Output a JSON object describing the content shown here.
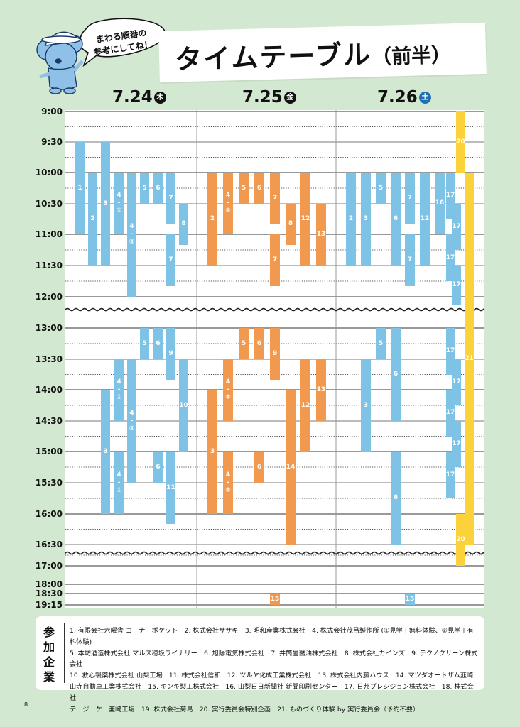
{
  "header": {
    "title": "タイムテーブル",
    "title_suffix": "（前半）",
    "speech_bubble": "まわる順番の\n参考にしてね！"
  },
  "days": [
    {
      "date": "7.24",
      "weekday": "木",
      "color": "#111111"
    },
    {
      "date": "7.25",
      "weekday": "金",
      "color": "#111111"
    },
    {
      "date": "7.26",
      "weekday": "土",
      "color": "#1e6fb4"
    }
  ],
  "colors": {
    "day1": "#7ec3e6",
    "day2": "#f19a4f",
    "day3": "#7ec3e6",
    "special": "#fcd23a",
    "background": "#d3e8d0"
  },
  "time_labels": [
    "9:00",
    "9:30",
    "10:00",
    "10:30",
    "11:00",
    "11:30",
    "12:00",
    "13:00",
    "13:30",
    "14:00",
    "14:30",
    "15:00",
    "15:30",
    "16:00",
    "16:30",
    "17:00",
    "18:00",
    "18:30",
    "19:15"
  ],
  "sessions": [
    {
      "day": 0,
      "slot": 0,
      "start": "9:30",
      "end": "11:00",
      "label": "1"
    },
    {
      "day": 0,
      "slot": 1,
      "start": "10:00",
      "end": "11:30",
      "label": "2"
    },
    {
      "day": 0,
      "slot": 2,
      "start": "9:30",
      "end": "11:30",
      "label": "3"
    },
    {
      "day": 0,
      "slot": 3,
      "start": "10:00",
      "end": "11:00",
      "label": "4\n-\n①"
    },
    {
      "day": 0,
      "slot": 4,
      "start": "10:00",
      "end": "12:00",
      "label": "4\n-\n②"
    },
    {
      "day": 0,
      "slot": 5,
      "start": "10:00",
      "end": "10:30",
      "label": "5"
    },
    {
      "day": 0,
      "slot": 6,
      "start": "10:00",
      "end": "10:30",
      "label": "6"
    },
    {
      "day": 0,
      "slot": 7,
      "start": "10:00",
      "end": "10:50",
      "label": "7"
    },
    {
      "day": 0,
      "slot": 7,
      "start": "11:00",
      "end": "11:50",
      "label": "7"
    },
    {
      "day": 0,
      "slot": 8,
      "start": "10:30",
      "end": "11:10",
      "label": "8"
    },
    {
      "day": 0,
      "slot": 2,
      "start": "14:00",
      "end": "16:00",
      "label": "3"
    },
    {
      "day": 0,
      "slot": 3,
      "start": "13:30",
      "end": "14:30",
      "label": "4\n-\n①"
    },
    {
      "day": 0,
      "slot": 3,
      "start": "15:00",
      "end": "16:00",
      "label": "4\n-\n①"
    },
    {
      "day": 0,
      "slot": 4,
      "start": "13:30",
      "end": "15:30",
      "label": "4\n-\n②"
    },
    {
      "day": 0,
      "slot": 5,
      "start": "13:00",
      "end": "13:30",
      "label": "5"
    },
    {
      "day": 0,
      "slot": 6,
      "start": "13:00",
      "end": "13:30",
      "label": "6"
    },
    {
      "day": 0,
      "slot": 6,
      "start": "15:00",
      "end": "15:30",
      "label": "6"
    },
    {
      "day": 0,
      "slot": 7,
      "start": "13:00",
      "end": "13:50",
      "label": "9"
    },
    {
      "day": 0,
      "slot": 7,
      "start": "15:00",
      "end": "16:10",
      "label": "11"
    },
    {
      "day": 0,
      "slot": 8,
      "start": "13:30",
      "end": "15:00",
      "label": "10"
    },
    {
      "day": 1,
      "slot": 0,
      "start": "10:00",
      "end": "11:30",
      "label": "2"
    },
    {
      "day": 1,
      "slot": 1,
      "start": "10:00",
      "end": "11:00",
      "label": "4\n-\n①"
    },
    {
      "day": 1,
      "slot": 2,
      "start": "10:00",
      "end": "10:30",
      "label": "5"
    },
    {
      "day": 1,
      "slot": 3,
      "start": "10:00",
      "end": "10:30",
      "label": "6"
    },
    {
      "day": 1,
      "slot": 4,
      "start": "10:00",
      "end": "10:50",
      "label": "7"
    },
    {
      "day": 1,
      "slot": 4,
      "start": "11:00",
      "end": "11:50",
      "label": "7"
    },
    {
      "day": 1,
      "slot": 5,
      "start": "10:30",
      "end": "11:10",
      "label": "8"
    },
    {
      "day": 1,
      "slot": 6,
      "start": "10:00",
      "end": "11:30",
      "label": "12"
    },
    {
      "day": 1,
      "slot": 7,
      "start": "10:30",
      "end": "11:30",
      "label": "13"
    },
    {
      "day": 1,
      "slot": 0,
      "start": "14:00",
      "end": "16:00",
      "label": "3"
    },
    {
      "day": 1,
      "slot": 1,
      "start": "13:30",
      "end": "14:30",
      "label": "4\n-\n①"
    },
    {
      "day": 1,
      "slot": 1,
      "start": "15:00",
      "end": "16:00",
      "label": "4\n-\n①"
    },
    {
      "day": 1,
      "slot": 2,
      "start": "13:00",
      "end": "13:30",
      "label": "5"
    },
    {
      "day": 1,
      "slot": 3,
      "start": "13:00",
      "end": "13:30",
      "label": "6"
    },
    {
      "day": 1,
      "slot": 3,
      "start": "15:00",
      "end": "15:30",
      "label": "6"
    },
    {
      "day": 1,
      "slot": 4,
      "start": "13:00",
      "end": "13:50",
      "label": "9"
    },
    {
      "day": 1,
      "slot": 5,
      "start": "14:00",
      "end": "16:30",
      "label": "14"
    },
    {
      "day": 1,
      "slot": 6,
      "start": "13:30",
      "end": "15:00",
      "label": "12"
    },
    {
      "day": 1,
      "slot": 7,
      "start": "13:30",
      "end": "14:30",
      "label": "13"
    },
    {
      "day": 1,
      "slot": 4,
      "start": "18:30",
      "end": "19:15",
      "label": "15"
    },
    {
      "day": 2,
      "slot": 0,
      "start": "10:00",
      "end": "11:30",
      "label": "2"
    },
    {
      "day": 2,
      "slot": 1,
      "start": "10:00",
      "end": "11:30",
      "label": "3"
    },
    {
      "day": 2,
      "slot": 2,
      "start": "10:00",
      "end": "10:30",
      "label": "5"
    },
    {
      "day": 2,
      "slot": 3,
      "start": "10:00",
      "end": "11:30",
      "label": "6"
    },
    {
      "day": 2,
      "slot": 4,
      "start": "10:00",
      "end": "10:50",
      "label": "7"
    },
    {
      "day": 2,
      "slot": 4,
      "start": "11:00",
      "end": "11:50",
      "label": "7"
    },
    {
      "day": 2,
      "slot": 5,
      "start": "10:00",
      "end": "11:30",
      "label": "12"
    },
    {
      "day": 2,
      "slot": 6,
      "start": "10:00",
      "end": "11:00",
      "label": "16"
    },
    {
      "day": 2,
      "slot": 1,
      "start": "13:30",
      "end": "15:00",
      "label": "3"
    },
    {
      "day": 2,
      "slot": 2,
      "start": "13:00",
      "end": "13:30",
      "label": "5"
    },
    {
      "day": 2,
      "slot": 3,
      "start": "13:00",
      "end": "14:30",
      "label": "6"
    },
    {
      "day": 2,
      "slot": 3,
      "start": "15:00",
      "end": "16:30",
      "label": "6"
    },
    {
      "day": 2,
      "slot": 4,
      "start": "18:30",
      "end": "19:15",
      "label": "15"
    },
    {
      "day": 2,
      "slot": 7,
      "start": "10:00",
      "end": "10:45",
      "label": "17"
    },
    {
      "day": 2,
      "slot": 8,
      "start": "10:30",
      "end": "11:15",
      "label": "17"
    },
    {
      "day": 2,
      "slot": 7,
      "start": "11:00",
      "end": "11:45",
      "label": "17"
    },
    {
      "day": 2,
      "slot": 8,
      "start": "11:30",
      "end": "12:15",
      "label": "17"
    },
    {
      "day": 2,
      "slot": 7,
      "start": "13:00",
      "end": "13:45",
      "label": "17"
    },
    {
      "day": 2,
      "slot": 8,
      "start": "13:30",
      "end": "14:15",
      "label": "17"
    },
    {
      "day": 2,
      "slot": 7,
      "start": "14:00",
      "end": "14:45",
      "label": "17"
    },
    {
      "day": 2,
      "slot": 8,
      "start": "14:30",
      "end": "15:15",
      "label": "17"
    },
    {
      "day": 2,
      "slot": 7,
      "start": "15:00",
      "end": "15:45",
      "label": "17"
    },
    {
      "day": 2,
      "slot": 9,
      "start": "9:00",
      "end": "10:00",
      "label": "20",
      "special": true
    },
    {
      "day": 2,
      "slot": 10,
      "start": "10:00",
      "end": "16:30",
      "label": "21",
      "special": true
    },
    {
      "day": 2,
      "slot": 9,
      "start": "16:00",
      "end": "17:00",
      "label": "20",
      "special": true
    }
  ],
  "companies": {
    "label": "参加企業",
    "lines": [
      "1. 有限会社六曜舎 コーナーポケット　2. 株式会社ササキ　3. 昭和産業株式会社　4. 株式会社茂呂製作所 (①見学＋無料体験、②見学＋有料体験)",
      "5. 本坊酒造株式会社 マルス穂坂ワイナリー　6. 旭陽電気株式会社　7. 井筒屋醤油株式会社　8. 株式会社カインズ　9. テクノクリーン株式会社",
      "10. 救心製薬株式会社 山梨工場　11. 株式会社信和　12. ツルヤ化成工業株式会社　13. 株式会社内藤ハウス　14. マツダオートザム韮崎",
      "山寺自動車工業株式会社　15. キンキ製工株式会社　16. 山梨日日新聞社 新聞印刷センター　17. 日邦プレシジョン株式会社　18. 株式会社",
      "テージーケー韮崎工場　19. 株式会社菊島　20. 実行委員会特別企画　21. ものづくり体験 by 実行委員会（予約不要）"
    ]
  },
  "page_number": "8"
}
